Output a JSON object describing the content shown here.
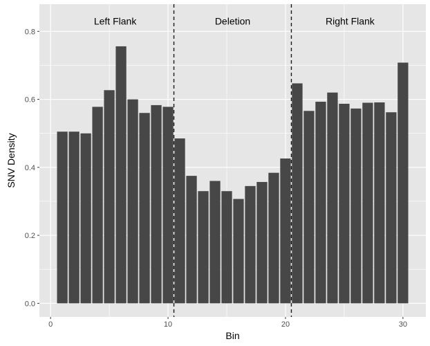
{
  "chart_data": {
    "type": "bar",
    "title": "",
    "xlabel": "Bin",
    "ylabel": "SNV Density",
    "x": [
      1,
      2,
      3,
      4,
      5,
      6,
      7,
      8,
      9,
      10,
      11,
      12,
      13,
      14,
      15,
      16,
      17,
      18,
      19,
      20,
      21,
      22,
      23,
      24,
      25,
      26,
      27,
      28,
      29,
      30
    ],
    "values": [
      0.505,
      0.505,
      0.5,
      0.578,
      0.627,
      0.756,
      0.6,
      0.56,
      0.583,
      0.578,
      0.485,
      0.375,
      0.33,
      0.36,
      0.33,
      0.307,
      0.345,
      0.357,
      0.384,
      0.426,
      0.647,
      0.566,
      0.593,
      0.62,
      0.587,
      0.573,
      0.59,
      0.591,
      0.562,
      0.708
    ],
    "xlim": [
      -0.95,
      31.95
    ],
    "ylim": [
      -0.04,
      0.88
    ],
    "xticks": [
      0,
      10,
      20,
      30
    ],
    "xtick_labels": [
      "0",
      "10",
      "20",
      "30"
    ],
    "yticks": [
      0.0,
      0.2,
      0.4,
      0.6,
      0.8
    ],
    "ytick_labels": [
      "0.0",
      "0.2",
      "0.4",
      "0.6",
      "0.8"
    ],
    "grid": true,
    "vlines": [
      10.5,
      20.5
    ],
    "regions": [
      {
        "label": "Left Flank",
        "x": 5.5,
        "y": 0.83
      },
      {
        "label": "Deletion",
        "x": 15.5,
        "y": 0.83
      },
      {
        "label": "Right Flank",
        "x": 25.5,
        "y": 0.83
      }
    ],
    "colors": {
      "bar": "#474747",
      "panel": "#e6e6e6",
      "grid": "#ffffff",
      "vline": "#1a1a1a"
    }
  }
}
